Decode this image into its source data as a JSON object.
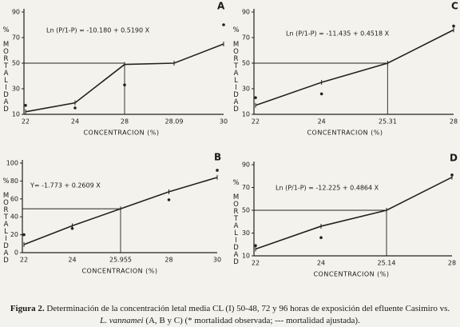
{
  "chart_data": [
    {
      "type": "line",
      "label": "A",
      "equation": "Ln (P/1-P) = -10.180 + 0.5190 X",
      "xlabel": "CONCENTRACION (%)",
      "ylabel": "% MORTALIDAD",
      "categories": [
        "22",
        "24",
        "28",
        "28.09",
        "30"
      ],
      "ylim": [
        10,
        90
      ],
      "yticks": [
        10,
        30,
        50,
        70,
        90
      ],
      "series": [
        {
          "type": "scatter",
          "color": "#222222",
          "values": [
            17,
            15,
            33,
            null,
            80
          ]
        },
        {
          "type": "line",
          "color": "#222222",
          "values": [
            12,
            19,
            49,
            50,
            65
          ]
        }
      ],
      "ref_line": {
        "y": 50,
        "category": "28"
      }
    },
    {
      "type": "line",
      "label": "C",
      "equation": "Ln (P/1-P) = -11.435 + 0.4518 X",
      "xlabel": "CONCENTRACION (%)",
      "ylabel": "% MORTALIDAD",
      "categories": [
        "22",
        "24",
        "25.31",
        "28"
      ],
      "ylim": [
        10,
        90
      ],
      "yticks": [
        10,
        30,
        50,
        70,
        90
      ],
      "series": [
        {
          "type": "scatter",
          "color": "#222222",
          "values": [
            23,
            26,
            null,
            79
          ]
        },
        {
          "type": "line",
          "color": "#222222",
          "values": [
            17,
            35,
            50,
            76
          ]
        }
      ],
      "ref_line": {
        "y": 50,
        "category": "25.31"
      }
    },
    {
      "type": "line",
      "label": "B",
      "equation": "Y= -1.773 + 0.2609 X",
      "xlabel": "CONCENTRACION (%)",
      "ylabel": "% MORTALIDAD",
      "categories": [
        "22",
        "24",
        "25.955",
        "28",
        "30"
      ],
      "ylim": [
        0,
        100
      ],
      "yticks": [
        0,
        20,
        40,
        60,
        80,
        100
      ],
      "series": [
        {
          "type": "scatter",
          "color": "#222222",
          "values": [
            20,
            27,
            null,
            59,
            92
          ]
        },
        {
          "type": "line",
          "color": "#222222",
          "values": [
            9,
            30,
            49,
            68,
            84
          ]
        }
      ],
      "ref_line": {
        "y": 49,
        "category": "25.955"
      }
    },
    {
      "type": "line",
      "label": "D",
      "equation": "Ln (P/1-P) = -12.225 + 0.4864 X",
      "xlabel": "CONCENTRACION (%)",
      "ylabel": "% MORTALIDAD",
      "categories": [
        "22",
        "24",
        "25.14",
        "28"
      ],
      "ylim": [
        10,
        90
      ],
      "yticks": [
        10,
        30,
        50,
        70,
        90
      ],
      "series": [
        {
          "type": "scatter",
          "color": "#222222",
          "values": [
            19,
            26,
            null,
            81
          ]
        },
        {
          "type": "line",
          "color": "#222222",
          "values": [
            16,
            36,
            50,
            79
          ]
        }
      ],
      "ref_line": {
        "y": 50,
        "category": "25.14"
      }
    }
  ],
  "caption": {
    "label": "Figura 2.",
    "text_1": "Determinación de la concentración letal media CL (I) 50-48, 72 y 96 horas de exposición del efluente Casimiro vs.",
    "species": "L. vannamei",
    "text_2": "(A, B y C) (* mortalidad observada; --- mortalidad ajustada)."
  }
}
